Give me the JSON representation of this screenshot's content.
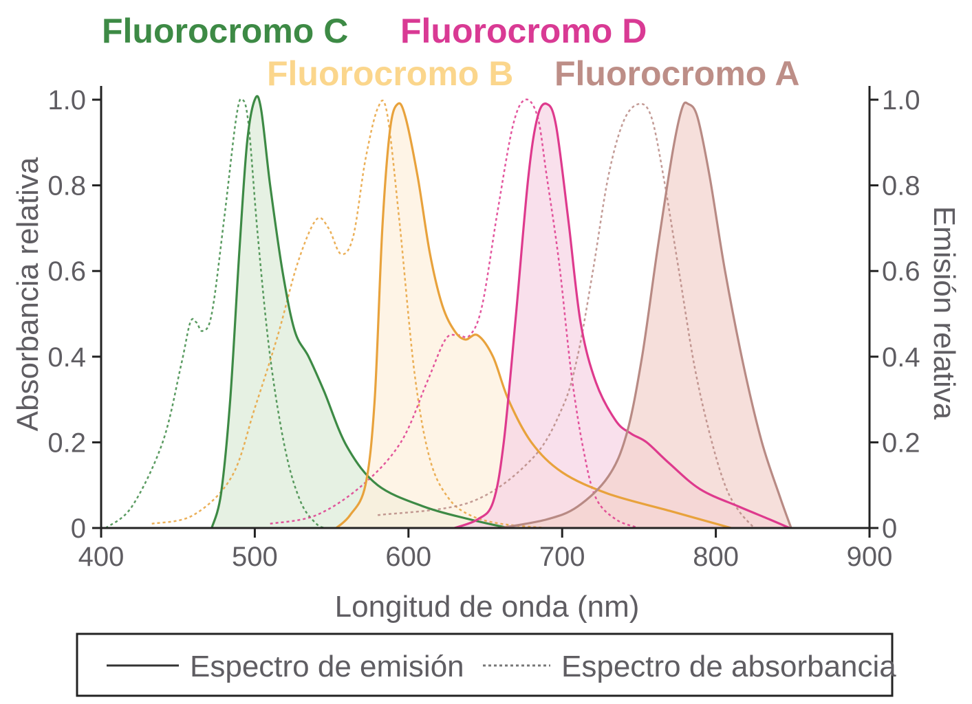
{
  "chart_data": {
    "type": "area",
    "x_axis": {
      "label": "Longitud de onda (nm)",
      "range": [
        400,
        900
      ],
      "ticks": [
        400,
        500,
        600,
        700,
        800,
        900
      ],
      "tick_labels": [
        "400",
        "500",
        "600",
        "700",
        "800",
        "900"
      ]
    },
    "y_axis_left": {
      "label": "Absorbancia relativa",
      "range": [
        0,
        1
      ],
      "ticks": [
        0,
        0.2,
        0.4,
        0.6,
        0.8,
        1.0
      ],
      "tick_labels": [
        "0",
        "0.2",
        "0.4",
        "0.6",
        "0.8",
        "1.0"
      ]
    },
    "y_axis_right": {
      "label": "Emisión relativa",
      "range": [
        0,
        1
      ],
      "ticks": [
        0,
        0.2,
        0.4,
        0.6,
        0.8,
        1.0
      ],
      "tick_labels": [
        "0",
        "0.2",
        "0.4",
        "0.6",
        "0.8",
        "1.0"
      ]
    },
    "grid": false,
    "legend": {
      "placement": "bottom",
      "entries": [
        {
          "style": "solid",
          "label": "Espectro de emisión"
        },
        {
          "style": "dashed",
          "label": "Espectro de absorbancia"
        }
      ]
    },
    "series": [
      {
        "name": "Fluorocromo C",
        "color": "#3d8a45",
        "fill": "#dcebd8",
        "absorbance": [
          [
            403,
            0
          ],
          [
            420,
            0.05
          ],
          [
            440,
            0.2
          ],
          [
            452,
            0.38
          ],
          [
            458,
            0.48
          ],
          [
            462,
            0.48
          ],
          [
            466,
            0.46
          ],
          [
            472,
            0.5
          ],
          [
            480,
            0.72
          ],
          [
            488,
            0.96
          ],
          [
            492,
            1.0
          ],
          [
            496,
            0.94
          ],
          [
            502,
            0.68
          ],
          [
            510,
            0.4
          ],
          [
            520,
            0.18
          ],
          [
            530,
            0.06
          ],
          [
            540,
            0.01
          ],
          [
            546,
            0
          ]
        ],
        "emission": [
          [
            472,
            0
          ],
          [
            478,
            0.08
          ],
          [
            484,
            0.3
          ],
          [
            490,
            0.65
          ],
          [
            495,
            0.9
          ],
          [
            500,
            1.0
          ],
          [
            504,
            0.98
          ],
          [
            510,
            0.8
          ],
          [
            518,
            0.6
          ],
          [
            526,
            0.46
          ],
          [
            535,
            0.4
          ],
          [
            545,
            0.32
          ],
          [
            560,
            0.19
          ],
          [
            580,
            0.1
          ],
          [
            610,
            0.05
          ],
          [
            640,
            0.02
          ],
          [
            665,
            0
          ]
        ]
      },
      {
        "name": "Fluorocromo B",
        "color": "#e8a23c",
        "fill": "#fdf0dc",
        "absorbance": [
          [
            433,
            0.01
          ],
          [
            460,
            0.03
          ],
          [
            485,
            0.12
          ],
          [
            500,
            0.28
          ],
          [
            515,
            0.45
          ],
          [
            528,
            0.62
          ],
          [
            540,
            0.72
          ],
          [
            548,
            0.7
          ],
          [
            556,
            0.64
          ],
          [
            564,
            0.68
          ],
          [
            572,
            0.86
          ],
          [
            580,
            0.98
          ],
          [
            586,
            0.97
          ],
          [
            594,
            0.72
          ],
          [
            604,
            0.36
          ],
          [
            614,
            0.16
          ],
          [
            626,
            0.07
          ],
          [
            640,
            0.03
          ],
          [
            660,
            0.01
          ],
          [
            690,
            0
          ]
        ],
        "emission": [
          [
            553,
            0
          ],
          [
            562,
            0.03
          ],
          [
            572,
            0.1
          ],
          [
            578,
            0.3
          ],
          [
            583,
            0.7
          ],
          [
            588,
            0.93
          ],
          [
            593,
            0.99
          ],
          [
            598,
            0.96
          ],
          [
            606,
            0.82
          ],
          [
            614,
            0.64
          ],
          [
            622,
            0.52
          ],
          [
            630,
            0.46
          ],
          [
            637,
            0.44
          ],
          [
            645,
            0.45
          ],
          [
            655,
            0.4
          ],
          [
            665,
            0.3
          ],
          [
            680,
            0.2
          ],
          [
            700,
            0.13
          ],
          [
            730,
            0.08
          ],
          [
            770,
            0.04
          ],
          [
            810,
            0
          ]
        ]
      },
      {
        "name": "Fluorocromo D",
        "color": "#de3a8d",
        "fill": "#f6d4e4",
        "absorbance": [
          [
            510,
            0.01
          ],
          [
            540,
            0.03
          ],
          [
            570,
            0.1
          ],
          [
            595,
            0.2
          ],
          [
            612,
            0.34
          ],
          [
            624,
            0.44
          ],
          [
            632,
            0.45
          ],
          [
            640,
            0.45
          ],
          [
            648,
            0.52
          ],
          [
            658,
            0.74
          ],
          [
            668,
            0.94
          ],
          [
            676,
            1.0
          ],
          [
            684,
            0.96
          ],
          [
            690,
            0.82
          ],
          [
            698,
            0.62
          ],
          [
            706,
            0.36
          ],
          [
            714,
            0.18
          ],
          [
            722,
            0.07
          ],
          [
            735,
            0.02
          ],
          [
            750,
            0
          ]
        ],
        "emission": [
          [
            630,
            0
          ],
          [
            645,
            0.02
          ],
          [
            655,
            0.06
          ],
          [
            662,
            0.2
          ],
          [
            670,
            0.5
          ],
          [
            678,
            0.82
          ],
          [
            684,
            0.96
          ],
          [
            690,
            0.99
          ],
          [
            696,
            0.94
          ],
          [
            704,
            0.72
          ],
          [
            712,
            0.48
          ],
          [
            722,
            0.34
          ],
          [
            735,
            0.25
          ],
          [
            745,
            0.22
          ],
          [
            755,
            0.2
          ],
          [
            770,
            0.15
          ],
          [
            790,
            0.09
          ],
          [
            815,
            0.05
          ],
          [
            835,
            0.02
          ],
          [
            848,
            0
          ]
        ]
      },
      {
        "name": "Fluorocromo A",
        "color": "#b88a84",
        "fill": "#f2d2cd",
        "absorbance": [
          [
            580,
            0.03
          ],
          [
            640,
            0.06
          ],
          [
            680,
            0.16
          ],
          [
            700,
            0.28
          ],
          [
            710,
            0.4
          ],
          [
            720,
            0.6
          ],
          [
            730,
            0.82
          ],
          [
            740,
            0.95
          ],
          [
            750,
            0.99
          ],
          [
            758,
            0.96
          ],
          [
            766,
            0.82
          ],
          [
            776,
            0.6
          ],
          [
            786,
            0.38
          ],
          [
            796,
            0.22
          ],
          [
            806,
            0.1
          ],
          [
            815,
            0.04
          ],
          [
            825,
            0
          ]
        ],
        "emission": [
          [
            660,
            0
          ],
          [
            690,
            0.02
          ],
          [
            710,
            0.05
          ],
          [
            730,
            0.12
          ],
          [
            742,
            0.22
          ],
          [
            752,
            0.4
          ],
          [
            762,
            0.65
          ],
          [
            772,
            0.88
          ],
          [
            778,
            0.98
          ],
          [
            782,
            0.99
          ],
          [
            788,
            0.96
          ],
          [
            796,
            0.82
          ],
          [
            806,
            0.6
          ],
          [
            818,
            0.38
          ],
          [
            830,
            0.2
          ],
          [
            842,
            0.07
          ],
          [
            849,
            0
          ]
        ]
      }
    ]
  }
}
